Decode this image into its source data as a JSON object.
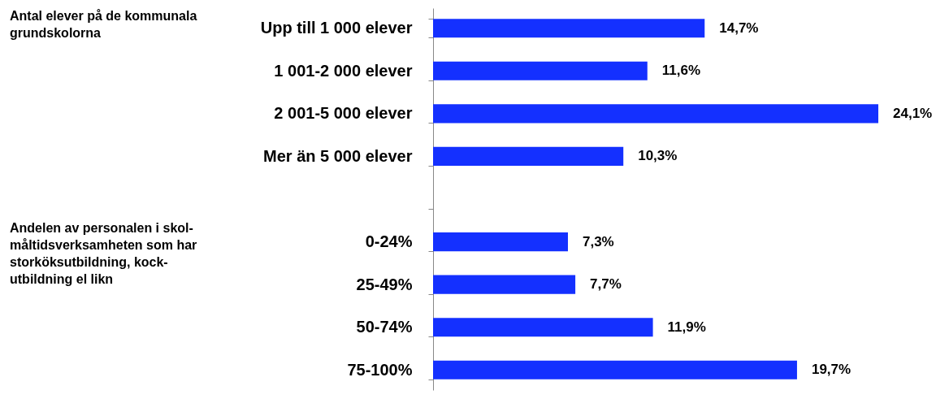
{
  "chart_data": {
    "type": "bar",
    "orientation": "horizontal",
    "categories": [
      "Upp till 1 000 elever",
      "1 001-2 000 elever",
      "2 001-5 000 elever",
      "Mer än 5 000 elever",
      null,
      "0-24%",
      "25-49%",
      "50-74%",
      "75-100%"
    ],
    "values": [
      14.7,
      11.6,
      24.1,
      10.3,
      null,
      7.3,
      7.7,
      11.9,
      19.7
    ],
    "value_labels": [
      "14,7%",
      "11,6%",
      "24,1%",
      "10,3%",
      null,
      "7,3%",
      "7,7%",
      "11,9%",
      "19,7%"
    ],
    "color": "#1430ff",
    "grid": false,
    "annotations": [
      "Antal elever på de kommunala grundskolorna",
      "Andelen av personalen i skol-måltidsverksamheten som har storköksutbildning, kock-utbildning el likn"
    ]
  }
}
